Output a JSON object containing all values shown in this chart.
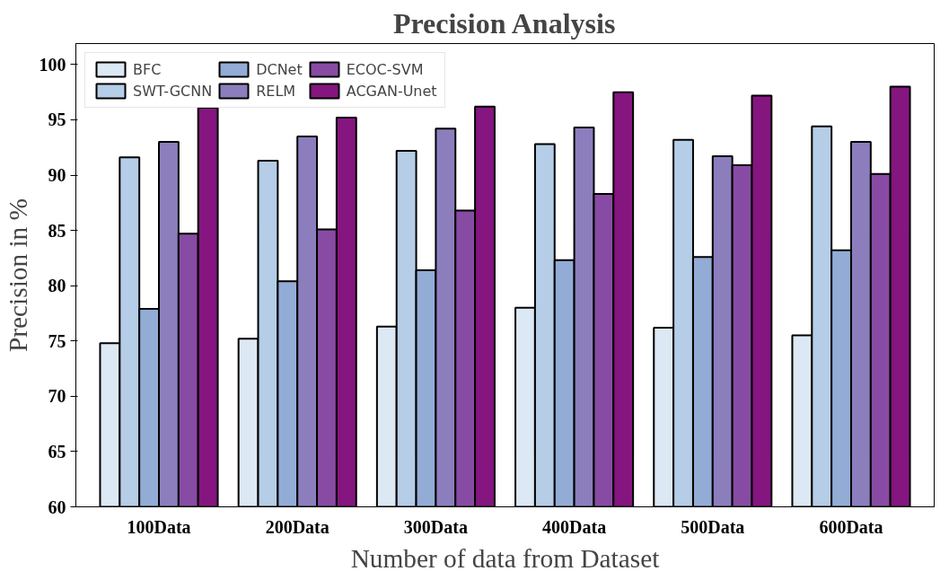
{
  "chart_data": {
    "type": "bar",
    "title": "Precision Analysis",
    "xlabel": "Number of data from Dataset",
    "ylabel": "Precision in %",
    "categories": [
      "100Data",
      "200Data",
      "300Data",
      "400Data",
      "500Data",
      "600Data"
    ],
    "series": [
      {
        "name": "BFC",
        "color": "#dce8f3",
        "values": [
          74.8,
          75.2,
          76.3,
          78.0,
          76.2,
          75.5
        ]
      },
      {
        "name": "SWT-GCNN",
        "color": "#b5cde6",
        "values": [
          91.6,
          91.3,
          92.2,
          92.8,
          93.2,
          94.4
        ]
      },
      {
        "name": "DCNet",
        "color": "#93acd6",
        "values": [
          77.9,
          80.4,
          81.4,
          82.3,
          82.6,
          83.2
        ]
      },
      {
        "name": "RELM",
        "color": "#8c7ebd",
        "values": [
          93.0,
          93.5,
          94.2,
          94.3,
          91.7,
          93.0
        ]
      },
      {
        "name": "ECOC-SVM",
        "color": "#884ba4",
        "values": [
          84.7,
          85.1,
          86.8,
          88.3,
          90.9,
          90.1
        ]
      },
      {
        "name": "ACGAN-Unet",
        "color": "#85157f",
        "values": [
          96.1,
          95.2,
          96.2,
          97.5,
          97.2,
          98.0
        ]
      }
    ],
    "ylim": [
      60,
      101.9
    ],
    "yticks": [
      60,
      65,
      70,
      75,
      80,
      85,
      90,
      95,
      100
    ],
    "grid": false,
    "legend": "top left"
  }
}
